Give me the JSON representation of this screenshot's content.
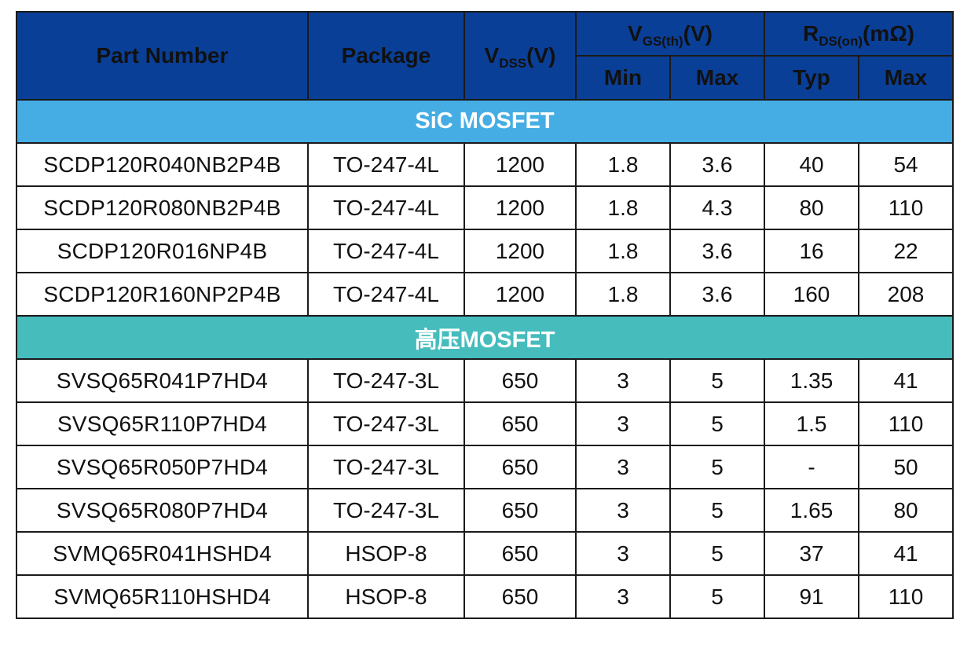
{
  "header": {
    "part_number": "Part Number",
    "package": "Package",
    "vdss_main": "V",
    "vdss_sub": "DSS",
    "vdss_unit": "(V)",
    "vgs_main": "V",
    "vgs_sub": "GS(th)",
    "vgs_unit": "(V)",
    "rds_main": "R",
    "rds_sub": "DS(on)",
    "rds_unit": "(mΩ)",
    "min": "Min",
    "max": "Max",
    "typ": "Typ",
    "max2": "Max"
  },
  "sections": [
    {
      "title": "SiC MOSFET",
      "rows": [
        {
          "part": "SCDP120R040NB2P4B",
          "package": "TO-247-4L",
          "vdss": "1200",
          "vgs_min": "1.8",
          "vgs_max": "3.6",
          "rds_typ": "40",
          "rds_max": "54"
        },
        {
          "part": "SCDP120R080NB2P4B",
          "package": "TO-247-4L",
          "vdss": "1200",
          "vgs_min": "1.8",
          "vgs_max": "4.3",
          "rds_typ": "80",
          "rds_max": "110"
        },
        {
          "part": "SCDP120R016NP4B",
          "package": "TO-247-4L",
          "vdss": "1200",
          "vgs_min": "1.8",
          "vgs_max": "3.6",
          "rds_typ": "16",
          "rds_max": "22"
        },
        {
          "part": "SCDP120R160NP2P4B",
          "package": "TO-247-4L",
          "vdss": "1200",
          "vgs_min": "1.8",
          "vgs_max": "3.6",
          "rds_typ": "160",
          "rds_max": "208"
        }
      ]
    },
    {
      "title": "高压MOSFET",
      "rows": [
        {
          "part": "SVSQ65R041P7HD4",
          "package": "TO-247-3L",
          "vdss": "650",
          "vgs_min": "3",
          "vgs_max": "5",
          "rds_typ": "1.35",
          "rds_max": "41"
        },
        {
          "part": "SVSQ65R110P7HD4",
          "package": "TO-247-3L",
          "vdss": "650",
          "vgs_min": "3",
          "vgs_max": "5",
          "rds_typ": "1.5",
          "rds_max": "110"
        },
        {
          "part": "SVSQ65R050P7HD4",
          "package": "TO-247-3L",
          "vdss": "650",
          "vgs_min": "3",
          "vgs_max": "5",
          "rds_typ": "-",
          "rds_max": "50"
        },
        {
          "part": "SVSQ65R080P7HD4",
          "package": "TO-247-3L",
          "vdss": "650",
          "vgs_min": "3",
          "vgs_max": "5",
          "rds_typ": "1.65",
          "rds_max": "80"
        },
        {
          "part": "SVMQ65R041HSHD4",
          "package": "HSOP-8",
          "vdss": "650",
          "vgs_min": "3",
          "vgs_max": "5",
          "rds_typ": "37",
          "rds_max": "41"
        },
        {
          "part": "SVMQ65R110HSHD4",
          "package": "HSOP-8",
          "vdss": "650",
          "vgs_min": "3",
          "vgs_max": "5",
          "rds_typ": "91",
          "rds_max": "110"
        }
      ]
    }
  ],
  "colors": {
    "header_bg": "#0a3f97",
    "sic_section_bg": "#45ade4",
    "hv_section_bg": "#46bcbd"
  }
}
